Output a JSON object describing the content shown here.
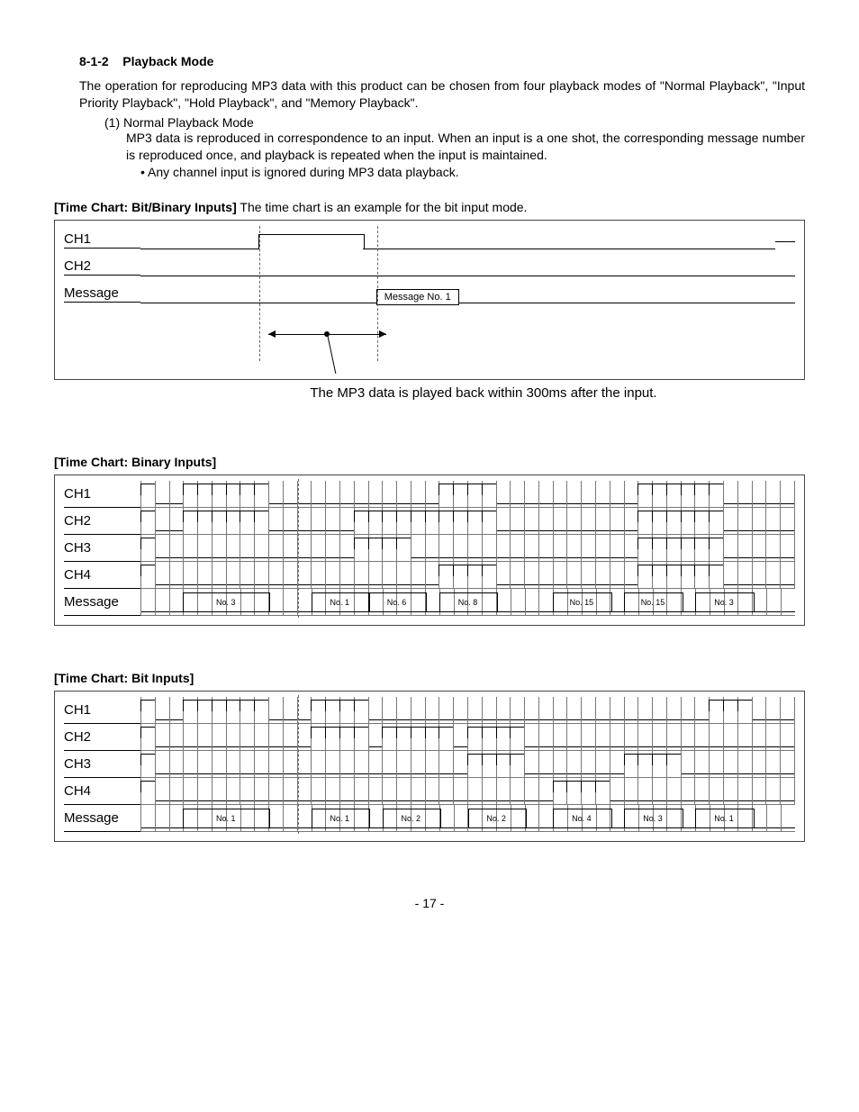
{
  "heading": {
    "number": "8-1-2",
    "title": "Playback Mode"
  },
  "intro": "The operation for reproducing MP3 data with this product can be chosen from four playback modes of \"Normal Playback\", \"Input Priority Playback\", \"Hold Playback\", and \"Memory Playback\".",
  "sub1": "(1) Normal Playback Mode",
  "sub1_body": "MP3 data is reproduced in correspondence to an input. When an input is a one shot, the corresponding message number is reproduced once, and playback is repeated when the input is maintained.",
  "sub1_bullet": "Any channel input is ignored during MP3 data playback.",
  "chart1": {
    "title_bold": "[Time Chart: Bit/Binary Inputs]",
    "title_rest": " The time chart is an example for the bit input mode.",
    "rows": [
      "CH1",
      "CH2",
      "Message"
    ],
    "msg_label": "Message No. 1",
    "pulse": {
      "left_pct": 18,
      "width_pct": 16
    },
    "msgbox": {
      "left_pct": 36
    },
    "dash1_pct": 18,
    "dash2_pct": 36,
    "caption": "The MP3 data is played back within 300ms after the input."
  },
  "chart2": {
    "title_bold": "[Time Chart: Binary Inputs]",
    "n_cells": 46,
    "rows": [
      {
        "label": "CH1",
        "high": [
          [
            0,
            1
          ],
          [
            3,
            9
          ],
          [
            21,
            25
          ],
          [
            35,
            41
          ]
        ]
      },
      {
        "label": "CH2",
        "high": [
          [
            0,
            1
          ],
          [
            3,
            9
          ],
          [
            15,
            25
          ],
          [
            35,
            41
          ]
        ]
      },
      {
        "label": "CH3",
        "high": [
          [
            0,
            1
          ],
          [
            15,
            19
          ],
          [
            35,
            41
          ]
        ]
      },
      {
        "label": "CH4",
        "high": [
          [
            0,
            1
          ],
          [
            21,
            25
          ],
          [
            35,
            41
          ]
        ]
      },
      {
        "label": "Message",
        "high": [],
        "msgs": [
          {
            "at": 6,
            "text": "No. 3"
          },
          {
            "at": 14,
            "text": "No. 1"
          },
          {
            "at": 18,
            "text": "No. 6"
          },
          {
            "at": 23,
            "text": "No. 8"
          },
          {
            "at": 31,
            "text": "No. 15"
          },
          {
            "at": 36,
            "text": "No. 15"
          },
          {
            "at": 41,
            "text": "No. 3"
          }
        ],
        "boxes": [
          [
            3,
            9
          ],
          [
            12,
            16
          ],
          [
            16,
            20
          ],
          [
            21,
            25
          ],
          [
            29,
            33
          ],
          [
            34,
            38
          ],
          [
            39,
            43
          ]
        ]
      }
    ],
    "dash_at": 11
  },
  "chart3": {
    "title_bold": "[Time Chart: Bit Inputs]",
    "n_cells": 46,
    "rows": [
      {
        "label": "CH1",
        "high": [
          [
            0,
            1
          ],
          [
            3,
            9
          ],
          [
            12,
            16
          ],
          [
            40,
            43
          ]
        ]
      },
      {
        "label": "CH2",
        "high": [
          [
            0,
            1
          ],
          [
            12,
            16
          ],
          [
            17,
            22
          ],
          [
            23,
            27
          ]
        ]
      },
      {
        "label": "CH3",
        "high": [
          [
            0,
            1
          ],
          [
            23,
            27
          ],
          [
            34,
            38
          ]
        ]
      },
      {
        "label": "CH4",
        "high": [
          [
            0,
            1
          ],
          [
            29,
            33
          ]
        ]
      },
      {
        "label": "Message",
        "high": [],
        "msgs": [
          {
            "at": 6,
            "text": "No. 1"
          },
          {
            "at": 14,
            "text": "No. 1"
          },
          {
            "at": 19,
            "text": "No. 2"
          },
          {
            "at": 25,
            "text": "No. 2"
          },
          {
            "at": 31,
            "text": "No. 4"
          },
          {
            "at": 36,
            "text": "No. 3"
          },
          {
            "at": 41,
            "text": "No. 1"
          }
        ],
        "boxes": [
          [
            3,
            9
          ],
          [
            12,
            16
          ],
          [
            17,
            21
          ],
          [
            23,
            27
          ],
          [
            29,
            33
          ],
          [
            34,
            38
          ],
          [
            39,
            43
          ]
        ]
      }
    ],
    "dash_at": 11
  },
  "page_number": "- 17 -"
}
